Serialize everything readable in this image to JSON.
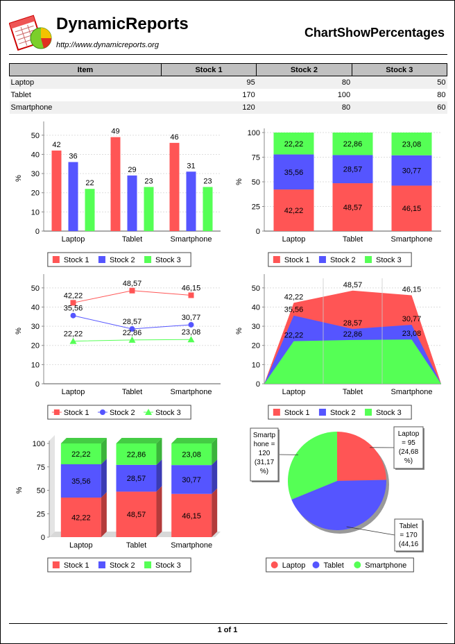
{
  "header": {
    "brand": "DynamicReports",
    "url": "http://www.dynamicreports.org",
    "title": "ChartShowPercentages"
  },
  "table": {
    "columns": [
      "Item",
      "Stock 1",
      "Stock 2",
      "Stock 3"
    ],
    "rows": [
      [
        "Laptop",
        "95",
        "80",
        "50"
      ],
      [
        "Tablet",
        "170",
        "100",
        "80"
      ],
      [
        "Smartphone",
        "120",
        "80",
        "60"
      ]
    ]
  },
  "colors": {
    "stock1": "#ff5555",
    "stock2": "#5555ff",
    "stock3": "#55ff55"
  },
  "chart_data": [
    {
      "type": "bar",
      "categories": [
        "Laptop",
        "Tablet",
        "Smartphone"
      ],
      "ylabel": "%",
      "ylim": [
        0,
        55
      ],
      "yticks": [
        "0",
        "10",
        "20",
        "30",
        "40",
        "50"
      ],
      "series": [
        {
          "name": "Stock 1",
          "values": [
            42,
            49,
            46
          ],
          "labels": [
            "42",
            "49",
            "46"
          ]
        },
        {
          "name": "Stock 2",
          "values": [
            36,
            29,
            31
          ],
          "labels": [
            "36",
            "29",
            "31"
          ]
        },
        {
          "name": "Stock 3",
          "values": [
            22,
            23,
            23
          ],
          "labels": [
            "22",
            "23",
            "23"
          ]
        }
      ],
      "legend": "bottom"
    },
    {
      "type": "stacked-bar",
      "categories": [
        "Laptop",
        "Tablet",
        "Smartphone"
      ],
      "ylabel": "%",
      "ylim": [
        0,
        100
      ],
      "yticks": [
        "0",
        "25",
        "50",
        "75",
        "100"
      ],
      "series": [
        {
          "name": "Stock 1",
          "values": [
            42.22,
            48.57,
            46.15
          ],
          "labels": [
            "42,22",
            "48,57",
            "46,15"
          ]
        },
        {
          "name": "Stock 2",
          "values": [
            35.56,
            28.57,
            30.77
          ],
          "labels": [
            "35,56",
            "28,57",
            "30,77"
          ]
        },
        {
          "name": "Stock 3",
          "values": [
            22.22,
            22.86,
            23.08
          ],
          "labels": [
            "22,22",
            "22,86",
            "23,08"
          ]
        }
      ],
      "legend": "bottom"
    },
    {
      "type": "line",
      "categories": [
        "Laptop",
        "Tablet",
        "Smartphone"
      ],
      "ylabel": "%",
      "ylim": [
        0,
        55
      ],
      "yticks": [
        "0",
        "10",
        "20",
        "30",
        "40",
        "50"
      ],
      "series": [
        {
          "name": "Stock 1",
          "values": [
            42.22,
            48.57,
            46.15
          ],
          "labels": [
            "42,22",
            "48,57",
            "46,15"
          ]
        },
        {
          "name": "Stock 2",
          "values": [
            35.56,
            28.57,
            30.77
          ],
          "labels": [
            "35,56",
            "28,57",
            "30,77"
          ]
        },
        {
          "name": "Stock 3",
          "values": [
            22.22,
            22.86,
            23.08
          ],
          "labels": [
            "22,22",
            "22,86",
            "23,08"
          ]
        }
      ],
      "legend": "bottom"
    },
    {
      "type": "area",
      "categories": [
        "Laptop",
        "Tablet",
        "Smartphone"
      ],
      "ylabel": "%",
      "ylim": [
        0,
        55
      ],
      "yticks": [
        "0",
        "10",
        "20",
        "30",
        "40",
        "50"
      ],
      "series": [
        {
          "name": "Stock 1",
          "values": [
            42.22,
            48.57,
            46.15
          ],
          "labels": [
            "42,22",
            "48,57",
            "46,15"
          ]
        },
        {
          "name": "Stock 2",
          "values": [
            35.56,
            28.57,
            30.77
          ],
          "labels": [
            "35,56",
            "28,57",
            "30,77"
          ]
        },
        {
          "name": "Stock 3",
          "values": [
            22.22,
            22.86,
            23.08
          ],
          "labels": [
            "22,22",
            "22,86",
            "23,08"
          ]
        }
      ],
      "legend": "bottom"
    },
    {
      "type": "stacked-bar-3d",
      "categories": [
        "Laptop",
        "Tablet",
        "Smartphone"
      ],
      "ylabel": "%",
      "ylim": [
        0,
        100
      ],
      "yticks": [
        "0",
        "25",
        "50",
        "75",
        "100"
      ],
      "series": [
        {
          "name": "Stock 1",
          "values": [
            42.22,
            48.57,
            46.15
          ],
          "labels": [
            "42,22",
            "48,57",
            "46,15"
          ]
        },
        {
          "name": "Stock 2",
          "values": [
            35.56,
            28.57,
            30.77
          ],
          "labels": [
            "35,56",
            "28,57",
            "30,77"
          ]
        },
        {
          "name": "Stock 3",
          "values": [
            22.22,
            22.86,
            23.08
          ],
          "labels": [
            "22,22",
            "22,86",
            "23,08"
          ]
        }
      ],
      "legend": "bottom"
    },
    {
      "type": "pie",
      "categories": [
        "Laptop",
        "Tablet",
        "Smartphone"
      ],
      "values": [
        95,
        170,
        120
      ],
      "labels": [
        [
          "Laptop",
          "= 95",
          "(24,68",
          "%)"
        ],
        [
          "Tablet",
          "= 170",
          "(44,16",
          "%)"
        ],
        [
          "Smartp",
          "hone =",
          "120",
          "(31,17",
          "%)"
        ]
      ],
      "legend": "bottom"
    }
  ],
  "footer": {
    "page": "1 of 1"
  }
}
